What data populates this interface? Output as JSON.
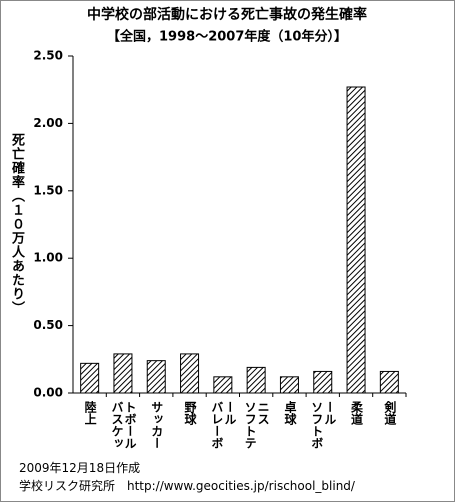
{
  "chart_data": {
    "type": "bar",
    "title": "中学校の部活動における死亡事故の発生確率",
    "subtitle": "【全国，1998～2007年度（10年分）】",
    "y_label": "死亡確率（１０万人あたり）",
    "categories": [
      "陸上",
      "バスケットボール",
      "サッカー",
      "野球",
      "バレーボール",
      "ソフトテニス",
      "卓球",
      "ソフトボール",
      "柔道",
      "剣道"
    ],
    "values": [
      0.22,
      0.29,
      0.24,
      0.29,
      0.12,
      0.19,
      0.12,
      0.16,
      2.27,
      0.16
    ],
    "color": "#000000",
    "ylim": [
      0,
      2.5
    ],
    "yticks": [
      {
        "value": 0,
        "label": "0.00"
      },
      {
        "value": 0.5,
        "label": "0.50"
      },
      {
        "value": 1,
        "label": "1.00"
      },
      {
        "value": 1.5,
        "label": "1.50"
      },
      {
        "value": 2,
        "label": "2.00"
      },
      {
        "value": 2.5,
        "label": "2.50"
      }
    ],
    "grid": false,
    "footer": [
      "2009年12月18日作成",
      "学校リスク研究所　http://www.geocities.jp/rischool_blind/"
    ]
  }
}
